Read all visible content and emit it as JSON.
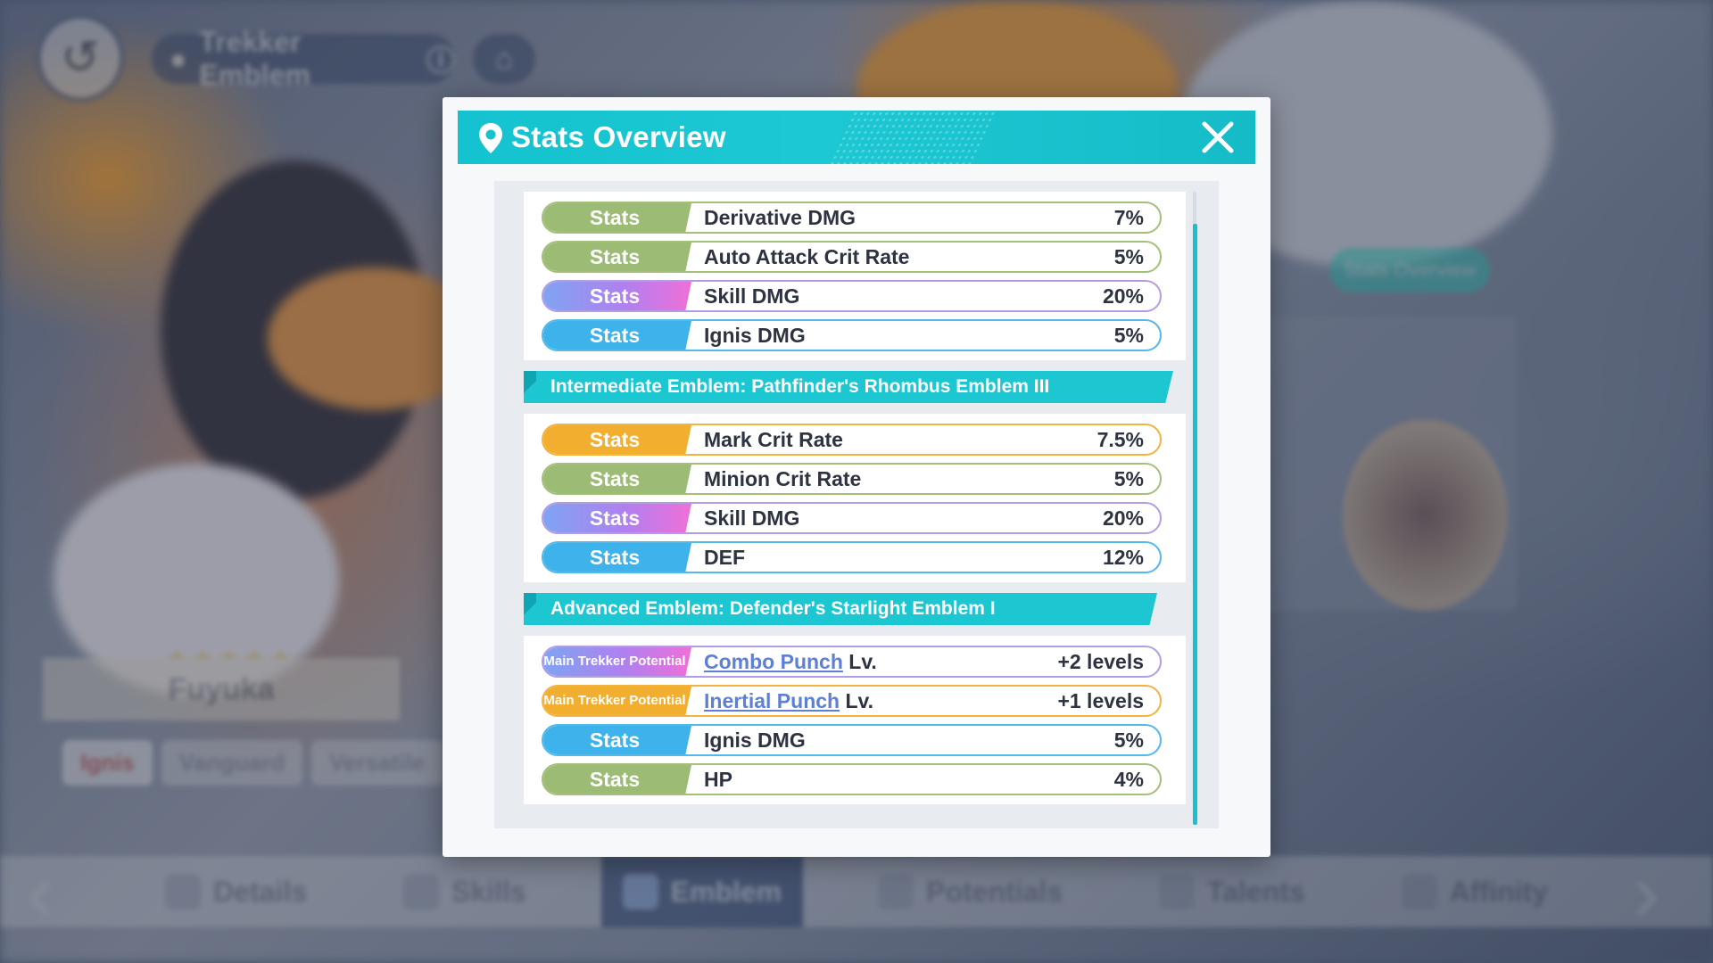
{
  "background": {
    "top_bar": {
      "title": "Trekker Emblem"
    },
    "character": {
      "name": "Fuyuka",
      "tags": [
        "Ignis",
        "Vanguard",
        "Versatile"
      ]
    },
    "side_button": "Stats Overview",
    "nav": [
      {
        "label": "Details",
        "active": false
      },
      {
        "label": "Skills",
        "active": false
      },
      {
        "label": "Emblem",
        "active": true
      },
      {
        "label": "Potentials",
        "active": false
      },
      {
        "label": "Talents",
        "active": false
      },
      {
        "label": "Affinity",
        "active": false
      }
    ]
  },
  "modal": {
    "title": "Stats Overview",
    "groups": [
      {
        "heading": "",
        "rows": [
          {
            "tag": "Stats",
            "label": "Derivative DMG",
            "value": "7%",
            "color": "green"
          },
          {
            "tag": "Stats",
            "label": "Auto Attack Crit Rate",
            "value": "5%",
            "color": "green"
          },
          {
            "tag": "Stats",
            "label": "Skill DMG",
            "value": "20%",
            "color": "purple"
          },
          {
            "tag": "Stats",
            "label": "Ignis DMG",
            "value": "5%",
            "color": "blue"
          }
        ]
      },
      {
        "heading": "Intermediate Emblem: Pathfinder's Rhombus Emblem III",
        "rows": [
          {
            "tag": "Stats",
            "label": "Mark Crit Rate",
            "value": "7.5%",
            "color": "gold"
          },
          {
            "tag": "Stats",
            "label": "Minion Crit Rate",
            "value": "5%",
            "color": "green"
          },
          {
            "tag": "Stats",
            "label": "Skill DMG",
            "value": "20%",
            "color": "purple"
          },
          {
            "tag": "Stats",
            "label": "DEF",
            "value": "12%",
            "color": "blue"
          }
        ]
      },
      {
        "heading": "Advanced Emblem: Defender's Starlight Emblem I",
        "rows": [
          {
            "tag": "Main Trekker Potential",
            "link": "Combo Punch",
            "suffix": "Lv.",
            "value": "+2 levels",
            "color": "purple"
          },
          {
            "tag": "Main Trekker Potential",
            "link": "Inertial Punch",
            "suffix": "Lv.",
            "value": "+1 levels",
            "color": "gold"
          },
          {
            "tag": "Stats",
            "label": "Ignis DMG",
            "value": "5%",
            "color": "blue"
          },
          {
            "tag": "Stats",
            "label": "HP",
            "value": "4%",
            "color": "green"
          }
        ]
      }
    ]
  },
  "colors": {
    "header": "#1cc7d1",
    "green": "#9cbc76",
    "blue": "#3eb2ea",
    "gold": "#f2ae2e",
    "purple_start": "#7fa4f2",
    "purple_end": "#f06fd8",
    "link": "#5d7fd6"
  }
}
